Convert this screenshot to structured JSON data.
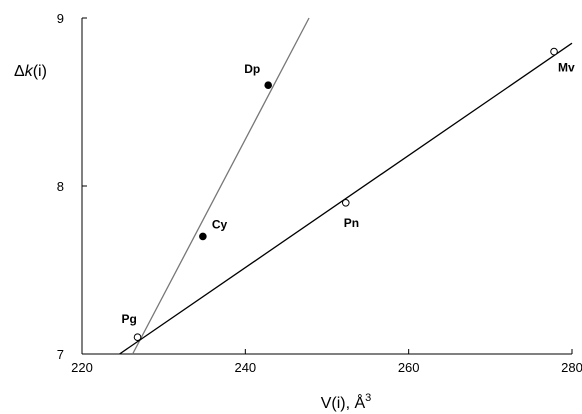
{
  "chart_data": {
    "type": "scatter",
    "title": "",
    "xlabel": "V(i), Å³",
    "xlabel_main": "V(i), Å",
    "xlabel_sup": "3",
    "ylabel_prefix": "Δ",
    "ylabel_var": "k",
    "ylabel_suffix": "(i)",
    "xlim": [
      220,
      280
    ],
    "ylim": [
      7,
      9
    ],
    "x_ticks": [
      220,
      240,
      260,
      280
    ],
    "x_tick_labels": [
      "220",
      "240",
      "260",
      "280"
    ],
    "y_ticks": [
      7,
      8,
      9
    ],
    "y_tick_labels": [
      "7",
      "8",
      "9"
    ],
    "grid": false,
    "series": [
      {
        "marker": "filled-circle",
        "points": [
          {
            "label": "Dp",
            "x": 242.8,
            "y": 8.6
          },
          {
            "label": "Cy",
            "x": 234.8,
            "y": 7.7
          }
        ]
      },
      {
        "marker": "open-circle",
        "points": [
          {
            "label": "Mv",
            "x": 277.8,
            "y": 8.8
          },
          {
            "label": "Pn",
            "x": 252.3,
            "y": 7.9
          },
          {
            "label": "Pg",
            "x": 226.8,
            "y": 7.1
          }
        ]
      }
    ],
    "fit_lines": [
      {
        "color": "#777777",
        "x": [
          226.2,
          247.8
        ],
        "y": [
          7.0,
          9.0
        ]
      },
      {
        "color": "#000000",
        "x": [
          224.6,
          280.0
        ],
        "y": [
          7.0,
          8.85
        ]
      }
    ]
  }
}
